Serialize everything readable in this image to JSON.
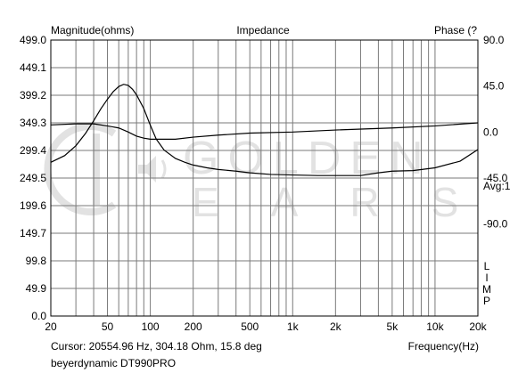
{
  "chart_data": {
    "type": "line",
    "title": "Impedance",
    "ylabel_left": "Magnitude(ohms)",
    "ylabel_right": "Phase (?",
    "xlabel": "Frequency(Hz)",
    "x_scale": "log",
    "xlim": [
      20,
      20000
    ],
    "ylim_left": [
      0,
      499
    ],
    "ylim_right": [
      -180,
      90
    ],
    "left_ticks": [
      "499.0",
      "449.1",
      "399.2",
      "349.3",
      "299.4",
      "249.5",
      "199.6",
      "149.7",
      "99.8",
      "49.9",
      "0.0"
    ],
    "right_ticks": [
      {
        "value": 90,
        "label": "90.0"
      },
      {
        "value": 45,
        "label": "45.0"
      },
      {
        "value": 0,
        "label": "0.0"
      },
      {
        "value": -45,
        "label": "-45.0"
      },
      {
        "value": -90,
        "label": "-90.0"
      }
    ],
    "x_ticks": [
      {
        "value": 20,
        "label": "20"
      },
      {
        "value": 50,
        "label": "50"
      },
      {
        "value": 100,
        "label": "100"
      },
      {
        "value": 200,
        "label": "200"
      },
      {
        "value": 500,
        "label": "500"
      },
      {
        "value": 1000,
        "label": "1k"
      },
      {
        "value": 2000,
        "label": "2k"
      },
      {
        "value": 5000,
        "label": "5k"
      },
      {
        "value": 10000,
        "label": "10k"
      },
      {
        "value": 20000,
        "label": "20k"
      }
    ],
    "series": [
      {
        "axis": "left",
        "color": "#000000",
        "points": [
          [
            20,
            278
          ],
          [
            25,
            290
          ],
          [
            30,
            308
          ],
          [
            35,
            330
          ],
          [
            40,
            353
          ],
          [
            45,
            375
          ],
          [
            50,
            392
          ],
          [
            55,
            406
          ],
          [
            60,
            415
          ],
          [
            65,
            419
          ],
          [
            70,
            417
          ],
          [
            75,
            410
          ],
          [
            80,
            400
          ],
          [
            90,
            375
          ],
          [
            100,
            345
          ],
          [
            110,
            320
          ],
          [
            125,
            300
          ],
          [
            150,
            285
          ],
          [
            175,
            278
          ],
          [
            200,
            273
          ],
          [
            250,
            268
          ],
          [
            300,
            265
          ],
          [
            400,
            262
          ],
          [
            500,
            259
          ],
          [
            700,
            256
          ],
          [
            1000,
            255
          ],
          [
            1500,
            254
          ],
          [
            2000,
            254
          ],
          [
            3000,
            254
          ],
          [
            4000,
            259
          ],
          [
            5000,
            262
          ],
          [
            7000,
            263
          ],
          [
            10000,
            268
          ],
          [
            15000,
            280
          ],
          [
            20000,
            301
          ]
        ]
      },
      {
        "axis": "right",
        "color": "#000000",
        "points": [
          [
            20,
            7
          ],
          [
            30,
            8
          ],
          [
            40,
            8
          ],
          [
            50,
            6
          ],
          [
            60,
            4
          ],
          [
            70,
            0
          ],
          [
            80,
            -4
          ],
          [
            90,
            -6
          ],
          [
            100,
            -7
          ],
          [
            120,
            -7
          ],
          [
            150,
            -7
          ],
          [
            200,
            -5
          ],
          [
            300,
            -3
          ],
          [
            500,
            -1
          ],
          [
            1000,
            0
          ],
          [
            2000,
            2
          ],
          [
            5000,
            4
          ],
          [
            10000,
            6
          ],
          [
            20000,
            9
          ]
        ]
      }
    ],
    "annotations": {
      "avg": "Avg:1",
      "limp": "LIMP",
      "cursor": "Cursor: 20554.96 Hz, 304.18 Ohm, 15.8 deg",
      "device": "beyerdynamic DT990PRO"
    },
    "watermark": {
      "line1": "GOLDEN",
      "line2": "EARS"
    }
  }
}
